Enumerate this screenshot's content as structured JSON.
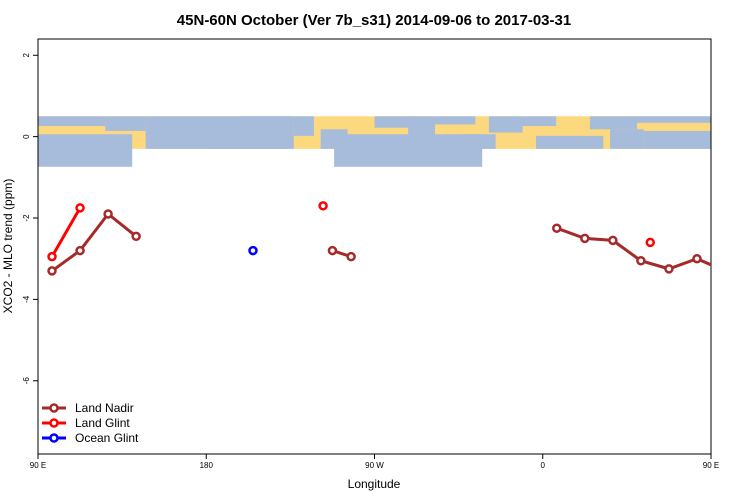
{
  "chart_data": {
    "type": "line",
    "title": "45N-60N October (Ver 7b_s31)   2014-09-06 to 2017-03-31",
    "xlabel": "Longitude",
    "ylabel": "XCO2 - MLO trend (ppm)",
    "xlim": [
      90,
      450
    ],
    "ylim": [
      -7.8,
      2.4
    ],
    "x_ticks": [
      {
        "value": 90,
        "label": "90 E"
      },
      {
        "value": 180,
        "label": "180"
      },
      {
        "value": 270,
        "label": "90 W"
      },
      {
        "value": 360,
        "label": "0"
      },
      {
        "value": 450,
        "label": "90 E"
      },
      {
        "value": 540,
        "label": "180"
      }
    ],
    "y_ticks": [
      {
        "value": 2,
        "label": "2"
      },
      {
        "value": 0,
        "label": "0"
      },
      {
        "value": -2,
        "label": "-2"
      },
      {
        "value": -4,
        "label": "-4"
      },
      {
        "value": -6,
        "label": "-6"
      }
    ],
    "grid": false,
    "legend_position": "bottom-left",
    "map_band": {
      "y_top": 0.5,
      "y_bottom": -0.3,
      "ocean_color": "#a7bbdb",
      "land_color": "#fcd97e"
    },
    "series": [
      {
        "name": "Land Nadir",
        "color": "#a52a2a",
        "segments": [
          [
            [
              97.5,
              -3.3
            ],
            [
              112.5,
              -2.8
            ],
            [
              127.5,
              -1.9
            ],
            [
              142.5,
              -2.45
            ]
          ],
          [
            [
              247.5,
              -2.8
            ],
            [
              257.5,
              -2.95
            ]
          ],
          [
            [
              367.5,
              -2.25
            ],
            [
              382.5,
              -2.5
            ],
            [
              397.5,
              -2.55
            ],
            [
              412.5,
              -3.05
            ],
            [
              427.5,
              -3.25
            ],
            [
              442.5,
              -3.0
            ],
            [
              457.5,
              -3.3
            ],
            [
              472.5,
              -2.8
            ],
            [
              487.5,
              -1.9
            ],
            [
              502.5,
              -2.45
            ]
          ]
        ]
      },
      {
        "name": "Land Glint",
        "color": "#ff0000",
        "segments": [
          [
            [
              97.5,
              -2.95
            ],
            [
              112.5,
              -1.75
            ]
          ],
          [
            [
              242.5,
              -1.7
            ]
          ],
          [
            [
              417.5,
              -2.6
            ]
          ],
          [
            [
              457.5,
              -2.95
            ],
            [
              472.5,
              -1.75
            ]
          ]
        ]
      },
      {
        "name": "Ocean Glint",
        "color": "#0000ff",
        "segments": [
          [
            [
              205.0,
              -2.8
            ]
          ]
        ]
      }
    ]
  }
}
